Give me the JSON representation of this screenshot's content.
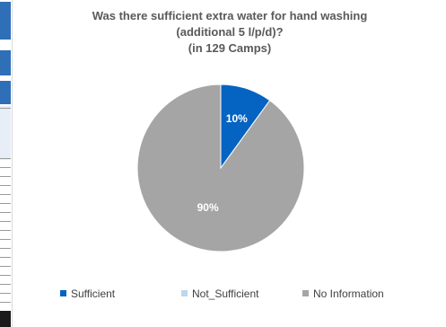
{
  "chart_data": {
    "type": "pie",
    "title": [
      "Was there sufficient extra water for hand washing",
      "(additional 5 l/p/d)?",
      "(in 129 Camps)"
    ],
    "slices": [
      {
        "name": "Sufficient",
        "value": 10,
        "label": "10%",
        "color": "#0563c1"
      },
      {
        "name": "Not_Sufficient",
        "value": 0,
        "label": "",
        "color": "#bdd7ee"
      },
      {
        "name": "No Information",
        "value": 90,
        "label": "90%",
        "color": "#a5a5a5"
      }
    ],
    "legend_position": "bottom",
    "label_color": "#ffffff"
  }
}
